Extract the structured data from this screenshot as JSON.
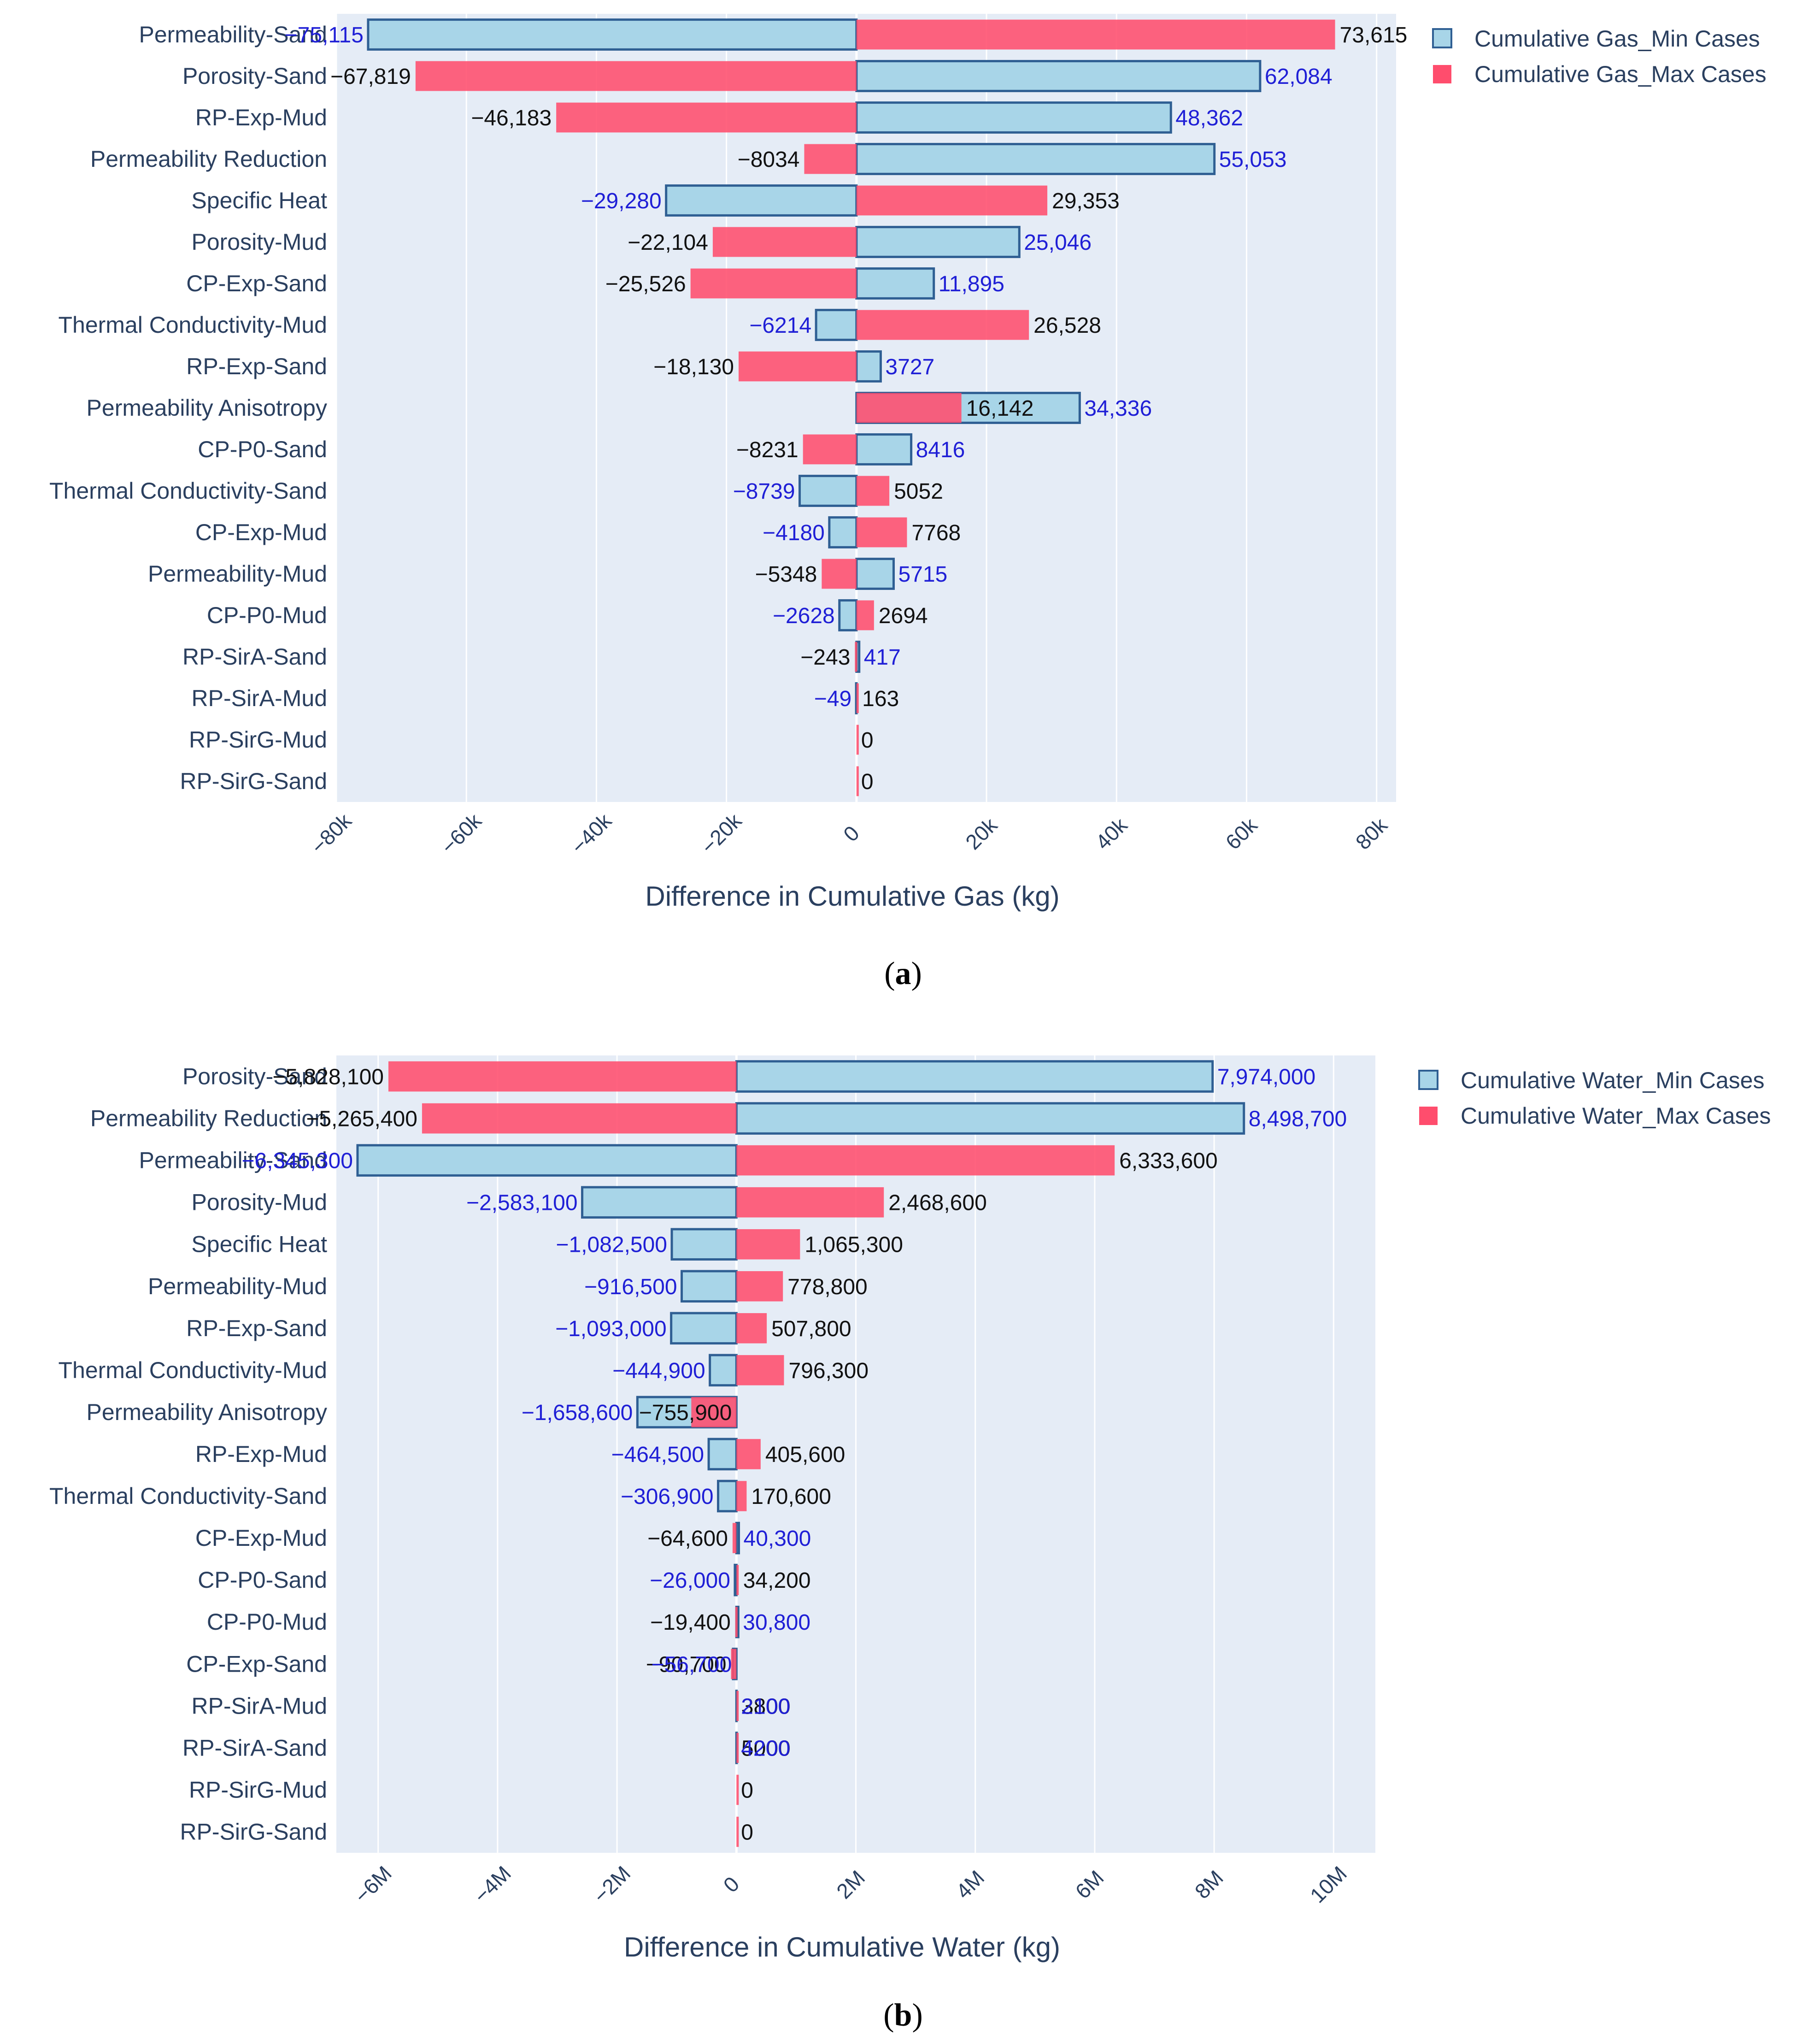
{
  "colors": {
    "plot_bg": "#e5ecf6",
    "grid": "#ffffff",
    "min_fill": "#a8d5e8",
    "min_stroke": "#2f5f93",
    "max_fill": "#ff4d6d",
    "label_blue": "#1f1fd6",
    "label_black": "#111111",
    "axis_text": "#2a3f5f"
  },
  "chart_data": [
    {
      "type": "bar",
      "orientation": "horizontal",
      "caption": "a",
      "caption_open": "(",
      "caption_close": ")",
      "xlabel": "Difference in Cumulative Gas (kg)",
      "xlim": [
        -80000,
        83000
      ],
      "ticks": [
        -80000,
        -60000,
        -40000,
        -20000,
        0,
        20000,
        40000,
        60000,
        80000
      ],
      "tick_labels": [
        "−80k",
        "−60k",
        "−40k",
        "−20k",
        "0",
        "20k",
        "40k",
        "60k",
        "80k"
      ],
      "categories": [
        "Permeability-Sand",
        "Porosity-Sand",
        "RP-Exp-Mud",
        "Permeability Reduction",
        "Specific Heat",
        "Porosity-Mud",
        "CP-Exp-Sand",
        "Thermal Conductivity-Mud",
        "RP-Exp-Sand",
        "Permeability Anisotropy",
        "CP-P0-Sand",
        "Thermal Conductivity-Sand",
        "CP-Exp-Mud",
        "Permeability-Mud",
        "CP-P0-Mud",
        "RP-SirA-Sand",
        "RP-SirA-Mud",
        "RP-SirG-Mud",
        "RP-SirG-Sand"
      ],
      "series": [
        {
          "name": "Cumulative Gas_Min Cases",
          "values": [
            -75115,
            62084,
            48362,
            55053,
            -29280,
            25046,
            11895,
            -6214,
            3727,
            34336,
            8416,
            -8739,
            -4180,
            5715,
            -2628,
            417,
            -49,
            0,
            0
          ],
          "labels": [
            "−75,115",
            "62,084",
            "48,362",
            "55,053",
            "−29,280",
            "25,046",
            "11,895",
            "−6214",
            "3727",
            "34,336",
            "8416",
            "−8739",
            "−4180",
            "5715",
            "−2628",
            "417",
            "−49",
            "",
            ""
          ]
        },
        {
          "name": "Cumulative Gas_Max Cases",
          "values": [
            73615,
            -67819,
            -46183,
            -8034,
            29353,
            -22104,
            -25526,
            26528,
            -18130,
            16142,
            -8231,
            5052,
            7768,
            -5348,
            2694,
            -243,
            163,
            0,
            0
          ],
          "labels": [
            "73,615",
            "−67,819",
            "−46,183",
            "−8034",
            "29,353",
            "−22,104",
            "−25,526",
            "26,528",
            "−18,130",
            "16,142",
            "−8231",
            "5052",
            "7768",
            "−5348",
            "2694",
            "−243",
            "163",
            "0",
            "0"
          ]
        }
      ]
    },
    {
      "type": "bar",
      "orientation": "horizontal",
      "caption": "b",
      "caption_open": "(",
      "caption_close": ")",
      "xlabel": "Difference in Cumulative Water (kg)",
      "xlim": [
        -6700000,
        10700000
      ],
      "ticks": [
        -6000000,
        -4000000,
        -2000000,
        0,
        2000000,
        4000000,
        6000000,
        8000000,
        10000000
      ],
      "tick_labels": [
        "−6M",
        "−4M",
        "−2M",
        "0",
        "2M",
        "4M",
        "6M",
        "8M",
        "10M"
      ],
      "categories": [
        "Porosity-Sand",
        "Permeability Reduction",
        "Permeability-Sand",
        "Porosity-Mud",
        "Specific Heat",
        "Permeability-Mud",
        "RP-Exp-Sand",
        "Thermal Conductivity-Mud",
        "Permeability Anisotropy",
        "RP-Exp-Mud",
        "Thermal Conductivity-Sand",
        "CP-Exp-Mud",
        "CP-P0-Sand",
        "CP-P0-Mud",
        "CP-Exp-Sand",
        "RP-SirA-Mud",
        "RP-SirA-Sand",
        "RP-SirG-Mud",
        "RP-SirG-Sand"
      ],
      "series": [
        {
          "name": "Cumulative Water_Min Cases",
          "values": [
            7974000,
            8498700,
            -6345300,
            -2583100,
            -1082500,
            -916500,
            -1093000,
            -444900,
            -1658600,
            -464500,
            -306900,
            40300,
            -26000,
            30800,
            -56700,
            2100,
            4200,
            0,
            0
          ],
          "labels": [
            "7,974,000",
            "8,498,700",
            "−6,345,300",
            "−2,583,100",
            "−1,082,500",
            "−916,500",
            "−1,093,000",
            "−444,900",
            "−1,658,600",
            "−464,500",
            "−306,900",
            "40,300",
            "−26,000",
            "30,800",
            "−56,700",
            "2100",
            "4200",
            "",
            ""
          ]
        },
        {
          "name": "Cumulative Water_Max Cases",
          "values": [
            -5828100,
            -5265400,
            6333600,
            2468600,
            1065300,
            778800,
            507800,
            796300,
            -755900,
            405600,
            170600,
            -64600,
            34200,
            -19400,
            -90700,
            3800,
            5000,
            0,
            0
          ],
          "labels": [
            "−5,828,100",
            "−5,265,400",
            "6,333,600",
            "2,468,600",
            "1,065,300",
            "778,800",
            "507,800",
            "796,300",
            "−755,900",
            "405,600",
            "170,600",
            "−64,600",
            "34,200",
            "−19,400",
            "−90,700",
            "3800",
            "5000",
            "0",
            "0"
          ]
        }
      ]
    }
  ]
}
